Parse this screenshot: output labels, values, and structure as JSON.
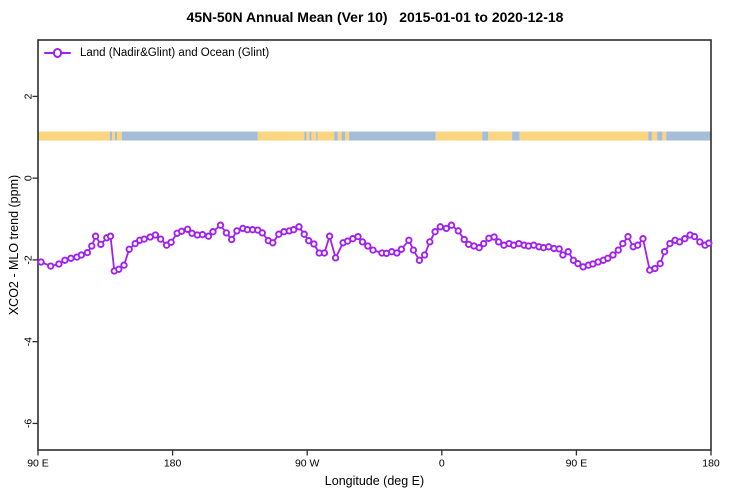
{
  "title": "45N-50N Annual Mean (Ver 10)   2015-01-01 to 2020-12-18",
  "legend": {
    "series_label": "Land (Nadir&Glint) and Ocean (Glint)"
  },
  "axes": {
    "x_label": "Longitude (deg E)",
    "y_label": "XCO2 - MLO trend (ppm)"
  },
  "colors": {
    "series": "#A020F0",
    "marker_fill": "#FFFFFF",
    "land": "#FBD57F",
    "ocean": "#A6BDDA",
    "axis": "#2E2E2E",
    "text": "#000000"
  },
  "chart_data": {
    "type": "line",
    "title": "45N-50N Annual Mean (Ver 10)   2015-01-01 to 2020-12-18",
    "xlabel": "Longitude (deg E)",
    "ylabel": "XCO2 - MLO trend (ppm)",
    "xlim": [
      90,
      540
    ],
    "ylim": [
      -6.65,
      3.38
    ],
    "grid": false,
    "legend_position": "top-left-inside",
    "x_ticks": [
      {
        "value": 90,
        "label": "90 E"
      },
      {
        "value": 180,
        "label": "180"
      },
      {
        "value": 270,
        "label": "90 W"
      },
      {
        "value": 360,
        "label": "0"
      },
      {
        "value": 450,
        "label": "90 E"
      },
      {
        "value": 540,
        "label": "180"
      }
    ],
    "y_ticks": [
      {
        "value": 2,
        "label": "2"
      },
      {
        "value": 0,
        "label": "0"
      },
      {
        "value": -2,
        "label": "-2"
      },
      {
        "value": -4,
        "label": "-4"
      },
      {
        "value": -6,
        "label": "-6"
      }
    ],
    "series": [
      {
        "name": "Land (Nadir&Glint) and Ocean (Glint)",
        "marker": "open-circle",
        "x": [
          92,
          98.5,
          104,
          108,
          112,
          116,
          119,
          123,
          126,
          128.5,
          132,
          136,
          138.5,
          141,
          144,
          147.5,
          151,
          155,
          158,
          161,
          165,
          168.5,
          172,
          176,
          179,
          183,
          186,
          190,
          193,
          196.5,
          200,
          204,
          207,
          212,
          216,
          219.5,
          223,
          227,
          230,
          233.5,
          237,
          240,
          244,
          247,
          251,
          254.5,
          258,
          261,
          264.5,
          268,
          271,
          274.5,
          278,
          281.5,
          285,
          289,
          294,
          297,
          300.5,
          304,
          307,
          310.5,
          314,
          320,
          323,
          326.5,
          330,
          333,
          338,
          341,
          345,
          348.5,
          352,
          355.5,
          359,
          363,
          366.5,
          371,
          375,
          378,
          381.5,
          385,
          388,
          391.5,
          395,
          398,
          401.5,
          405,
          408,
          411.5,
          415,
          418,
          421.5,
          425,
          428,
          431.5,
          435,
          438.5,
          441,
          444.5,
          448,
          451,
          454.5,
          458,
          461,
          464.5,
          468,
          471,
          474.5,
          478,
          481,
          484.5,
          488,
          491,
          494.5,
          499,
          502.5,
          506,
          509,
          512.5,
          516,
          519,
          522.5,
          526,
          529,
          532.5,
          536,
          538.5
        ],
        "y": [
          -2.05,
          -2.15,
          -2.1,
          -2.01,
          -1.96,
          -1.93,
          -1.88,
          -1.82,
          -1.66,
          -1.42,
          -1.62,
          -1.46,
          -1.42,
          -2.27,
          -2.23,
          -2.13,
          -1.74,
          -1.6,
          -1.52,
          -1.49,
          -1.44,
          -1.39,
          -1.49,
          -1.64,
          -1.57,
          -1.35,
          -1.3,
          -1.25,
          -1.35,
          -1.39,
          -1.38,
          -1.42,
          -1.31,
          -1.15,
          -1.34,
          -1.5,
          -1.29,
          -1.23,
          -1.26,
          -1.26,
          -1.27,
          -1.34,
          -1.53,
          -1.58,
          -1.37,
          -1.31,
          -1.29,
          -1.26,
          -1.19,
          -1.37,
          -1.53,
          -1.61,
          -1.83,
          -1.83,
          -1.42,
          -1.95,
          -1.58,
          -1.54,
          -1.48,
          -1.43,
          -1.56,
          -1.66,
          -1.76,
          -1.83,
          -1.84,
          -1.8,
          -1.83,
          -1.74,
          -1.52,
          -1.76,
          -2.01,
          -1.88,
          -1.56,
          -1.31,
          -1.19,
          -1.23,
          -1.15,
          -1.29,
          -1.5,
          -1.62,
          -1.66,
          -1.7,
          -1.6,
          -1.47,
          -1.44,
          -1.56,
          -1.64,
          -1.6,
          -1.64,
          -1.6,
          -1.64,
          -1.66,
          -1.64,
          -1.68,
          -1.7,
          -1.68,
          -1.72,
          -1.73,
          -1.88,
          -1.8,
          -2.01,
          -2.09,
          -2.17,
          -2.13,
          -2.1,
          -2.05,
          -2.01,
          -1.96,
          -1.88,
          -1.76,
          -1.6,
          -1.43,
          -1.68,
          -1.64,
          -1.48,
          -2.25,
          -2.21,
          -2.09,
          -1.8,
          -1.6,
          -1.52,
          -1.56,
          -1.48,
          -1.39,
          -1.43,
          -1.56,
          -1.64,
          -1.59
        ]
      }
    ],
    "map_band": {
      "description": "land/ocean strip along 45N-50N",
      "y_range": [
        0.92,
        1.14
      ],
      "segments": [
        {
          "from": 90,
          "to": 138,
          "surface": "land"
        },
        {
          "from": 138,
          "to": 139.5,
          "surface": "ocean"
        },
        {
          "from": 139.5,
          "to": 141.5,
          "surface": "land"
        },
        {
          "from": 141.5,
          "to": 143,
          "surface": "ocean"
        },
        {
          "from": 143,
          "to": 146,
          "surface": "land"
        },
        {
          "from": 146,
          "to": 237,
          "surface": "ocean"
        },
        {
          "from": 237,
          "to": 268,
          "surface": "land"
        },
        {
          "from": 268,
          "to": 269.5,
          "surface": "ocean"
        },
        {
          "from": 269.5,
          "to": 271.5,
          "surface": "land"
        },
        {
          "from": 271.5,
          "to": 273,
          "surface": "ocean"
        },
        {
          "from": 273,
          "to": 276,
          "surface": "land"
        },
        {
          "from": 276,
          "to": 277,
          "surface": "ocean"
        },
        {
          "from": 277,
          "to": 288,
          "surface": "land"
        },
        {
          "from": 288,
          "to": 290.5,
          "surface": "ocean"
        },
        {
          "from": 290.5,
          "to": 293,
          "surface": "land"
        },
        {
          "from": 293,
          "to": 295.5,
          "surface": "ocean"
        },
        {
          "from": 295.5,
          "to": 298,
          "surface": "land"
        },
        {
          "from": 298,
          "to": 356,
          "surface": "ocean"
        },
        {
          "from": 356,
          "to": 387,
          "surface": "land"
        },
        {
          "from": 387,
          "to": 391,
          "surface": "ocean"
        },
        {
          "from": 391,
          "to": 407,
          "surface": "land"
        },
        {
          "from": 407,
          "to": 412,
          "surface": "ocean"
        },
        {
          "from": 412,
          "to": 498,
          "surface": "land"
        },
        {
          "from": 498,
          "to": 500.5,
          "surface": "ocean"
        },
        {
          "from": 500.5,
          "to": 504,
          "surface": "land"
        },
        {
          "from": 504,
          "to": 507.5,
          "surface": "ocean"
        },
        {
          "from": 507.5,
          "to": 510,
          "surface": "land"
        },
        {
          "from": 510,
          "to": 540,
          "surface": "ocean"
        }
      ]
    }
  }
}
